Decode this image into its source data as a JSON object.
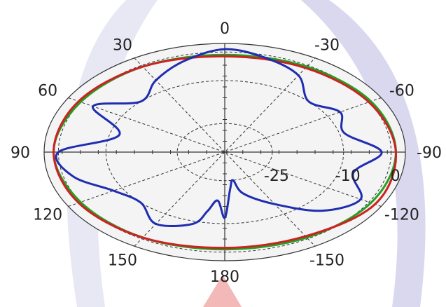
{
  "chart_data": {
    "type": "polar",
    "title": "",
    "grid": true,
    "angle_direction": "0 at top, positive counter-clockwise (left), negative clockwise (right)",
    "angle_labels": [
      "0",
      "30",
      "60",
      "90",
      "120",
      "150",
      "180",
      "-150",
      "-120",
      "-90",
      "-60",
      "-30"
    ],
    "angles_deg": [
      0,
      30,
      60,
      90,
      120,
      150,
      180,
      -150,
      -120,
      -90,
      -60,
      -30
    ],
    "r_labels": [
      "-25",
      "-10",
      "0"
    ],
    "r_range": [
      -35,
      3
    ],
    "rings": [
      -25,
      -10,
      0
    ],
    "series": [
      {
        "color": "#1f2db0",
        "theta": [
          0,
          15,
          30,
          45,
          60,
          75,
          90,
          105,
          120,
          135,
          150,
          165,
          170,
          175,
          180,
          185,
          190,
          195,
          210,
          225,
          240,
          255,
          270,
          285,
          300,
          315,
          330,
          345,
          360
        ],
        "r": [
          1,
          -2,
          -6,
          -10,
          -3,
          -12,
          0,
          -2,
          -8,
          -10,
          -6,
          -9,
          -14,
          -18,
          -12,
          -22,
          -25,
          -20,
          -14,
          -6,
          -2,
          -7,
          -2,
          -9,
          -7,
          -10,
          -4,
          -1,
          1
        ]
      },
      {
        "color": "#cc2222",
        "theta": [
          0,
          30,
          60,
          90,
          120,
          150,
          180,
          210,
          240,
          270,
          300,
          330,
          360
        ],
        "r": [
          -1.5,
          -0.5,
          0.5,
          1,
          0.5,
          -0.5,
          -1.5,
          -1,
          1.5,
          1,
          0,
          -1,
          -1.5
        ]
      },
      {
        "color": "#22a022",
        "theta": [
          0,
          30,
          60,
          90,
          120,
          150,
          180,
          210,
          240,
          270,
          300,
          330,
          360
        ],
        "r": [
          -1,
          -0.5,
          0,
          1,
          0,
          -0.5,
          -1,
          -0.5,
          0.5,
          1,
          0.5,
          -0.5,
          -1
        ]
      }
    ]
  },
  "colors": {
    "ring_fill": "#f4f4f4",
    "grid": "#333333",
    "watermark": "#d9d8ee",
    "watermark_accent": "#f3b8b8"
  }
}
